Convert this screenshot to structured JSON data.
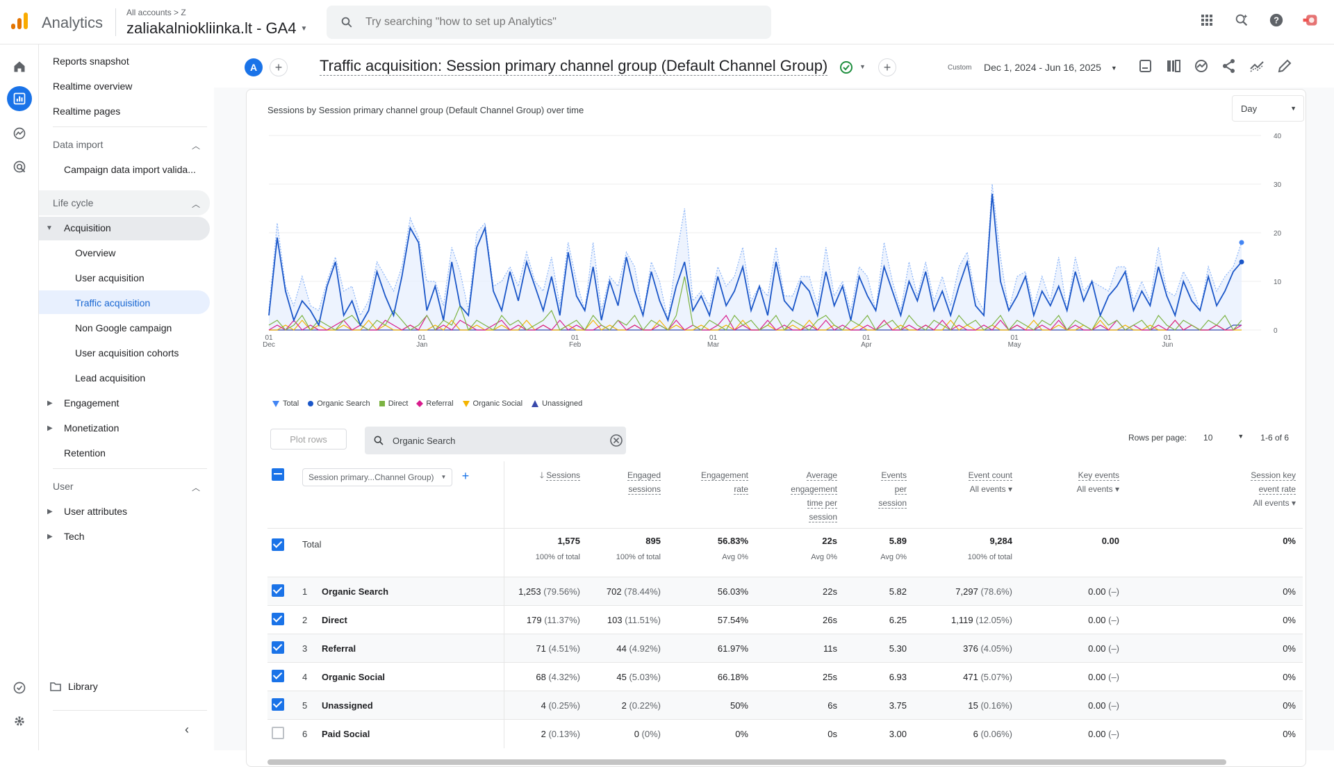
{
  "header": {
    "app_name": "Analytics",
    "breadcrumb": "All accounts > Z",
    "property": "zaliakalniokliinka.lt - GA4",
    "search_placeholder": "Try searching \"how to set up Analytics\""
  },
  "nav": {
    "items": [
      "Reports snapshot",
      "Realtime overview",
      "Realtime pages"
    ],
    "data_import_label": "Data import",
    "data_import_child": "Campaign data import valida...",
    "lifecycle_label": "Life cycle",
    "acquisition_label": "Acquisition",
    "acq_children": [
      "Overview",
      "User acquisition",
      "Traffic acquisition",
      "Non Google campaign",
      "User acquisition cohorts",
      "Lead acquisition"
    ],
    "engagement": "Engagement",
    "monetization": "Monetization",
    "retention": "Retention",
    "user_label": "User",
    "user_attributes": "User attributes",
    "tech": "Tech",
    "library": "Library"
  },
  "toolbar": {
    "avatar": "A",
    "title": "Traffic acquisition: Session primary channel group (Default Channel Group)",
    "custom_label": "Custom",
    "date_range": "Dec 1, 2024 - Jun 16, 2025"
  },
  "chart": {
    "title": "Sessions by Session primary channel group (Default Channel Group) over time",
    "granularity": "Day",
    "y_ticks": [
      "40",
      "30",
      "20",
      "10",
      "0"
    ],
    "x_ticks": [
      {
        "a": "01",
        "b": "Dec"
      },
      {
        "a": "01",
        "b": "Jan"
      },
      {
        "a": "01",
        "b": "Feb"
      },
      {
        "a": "01",
        "b": "Mar"
      },
      {
        "a": "01",
        "b": "Apr"
      },
      {
        "a": "01",
        "b": "May"
      },
      {
        "a": "01",
        "b": "Jun"
      }
    ],
    "legend": [
      "Total",
      "Organic Search",
      "Direct",
      "Referral",
      "Organic Social",
      "Unassigned"
    ],
    "colors": {
      "total": "#4285f4",
      "organic": "#1a56c8",
      "direct": "#7cb342",
      "referral": "#d81b8c",
      "social": "#f4b400",
      "unassigned": "#3949ab"
    }
  },
  "chart_data": {
    "type": "line",
    "x": "daily, Dec 1, 2024 - Jun 16, 2025",
    "ylim": [
      0,
      40
    ],
    "series": [
      {
        "name": "Organic Search",
        "values": [
          3,
          19,
          8,
          2,
          6,
          4,
          1,
          9,
          14,
          3,
          6,
          1,
          4,
          12,
          7,
          3,
          11,
          21,
          18,
          4,
          9,
          2,
          14,
          5,
          3,
          17,
          21,
          8,
          4,
          12,
          6,
          14,
          9,
          4,
          11,
          3,
          16,
          7,
          4,
          13,
          2,
          10,
          5,
          15,
          8,
          3,
          12,
          6,
          2,
          9,
          14,
          4,
          7,
          3,
          11,
          5,
          8,
          13,
          4,
          9,
          3,
          14,
          6,
          4,
          10,
          8,
          3,
          12,
          5,
          9,
          2,
          11,
          7,
          4,
          13,
          8,
          3,
          10,
          6,
          12,
          4,
          8,
          3,
          9,
          14,
          5,
          3,
          28,
          10,
          4,
          7,
          11,
          3,
          8,
          5,
          9,
          4,
          12,
          6,
          10,
          3,
          7,
          9,
          12,
          4,
          8,
          5,
          13,
          7,
          3,
          10,
          6,
          4,
          11,
          5,
          8,
          12,
          14
        ]
      },
      {
        "name": "Direct",
        "values": [
          1,
          2,
          0,
          1,
          3,
          0,
          2,
          1,
          0,
          2,
          3,
          1,
          0,
          2,
          1,
          4,
          2,
          0,
          1,
          3,
          0,
          2,
          1,
          5,
          0,
          2,
          1,
          0,
          3,
          1,
          2,
          0,
          1,
          2,
          4,
          0,
          1,
          2,
          0,
          3,
          1,
          0,
          2,
          1,
          3,
          0,
          2,
          1,
          0,
          3,
          11,
          1,
          0,
          2,
          1,
          0,
          3,
          1,
          2,
          0,
          1,
          3,
          0,
          2,
          1,
          0,
          2,
          3,
          1,
          0,
          2,
          1,
          3,
          0,
          1,
          2,
          0,
          3,
          1,
          0,
          2,
          1,
          0,
          3,
          1,
          2,
          0,
          1,
          3,
          0,
          2,
          1,
          0,
          2,
          1,
          3,
          0,
          2,
          1,
          0,
          3,
          1,
          2,
          0,
          1,
          2,
          0,
          3,
          1,
          0,
          2,
          1,
          0,
          2,
          1,
          3,
          0,
          2
        ]
      },
      {
        "name": "Referral",
        "values": [
          0,
          1,
          0,
          2,
          0,
          1,
          0,
          0,
          1,
          2,
          0,
          1,
          0,
          0,
          2,
          1,
          0,
          1,
          0,
          3,
          0,
          1,
          0,
          2,
          1,
          0,
          0,
          1,
          2,
          0,
          1,
          0,
          0,
          1,
          0,
          2,
          0,
          1,
          0,
          0,
          1,
          0,
          2,
          0,
          1,
          0,
          0,
          1,
          0,
          2,
          0,
          1,
          0,
          0,
          1,
          3,
          0,
          1,
          0,
          0,
          2,
          0,
          1,
          0,
          0,
          1,
          0,
          2,
          0,
          1,
          0,
          0,
          1,
          0,
          2,
          0,
          0,
          1,
          0,
          1,
          0,
          2,
          0,
          1,
          0,
          0,
          1,
          0,
          2,
          0,
          1,
          0,
          0,
          1,
          0,
          2,
          0,
          1,
          0,
          0,
          1,
          0,
          2,
          0,
          1,
          0,
          0,
          1,
          0,
          2,
          0,
          1,
          0,
          0,
          1,
          0,
          0,
          1
        ]
      },
      {
        "name": "Organic Social",
        "values": [
          0,
          0,
          1,
          0,
          2,
          0,
          1,
          0,
          0,
          1,
          0,
          0,
          2,
          0,
          1,
          0,
          0,
          1,
          0,
          0,
          1,
          0,
          2,
          0,
          0,
          1,
          0,
          0,
          1,
          0,
          0,
          2,
          0,
          1,
          0,
          0,
          1,
          0,
          0,
          2,
          0,
          1,
          0,
          0,
          1,
          0,
          0,
          2,
          0,
          1,
          0,
          0,
          1,
          0,
          0,
          1,
          0,
          2,
          0,
          0,
          1,
          0,
          0,
          1,
          0,
          2,
          0,
          0,
          1,
          0,
          0,
          1,
          0,
          0,
          2,
          0,
          1,
          0,
          0,
          1,
          0,
          0,
          2,
          0,
          1,
          0,
          0,
          1,
          0,
          0,
          1,
          0,
          2,
          0,
          0,
          1,
          0,
          0,
          1,
          0,
          2,
          0,
          0,
          1,
          0,
          0,
          1,
          0,
          0,
          2,
          0,
          1,
          0,
          0,
          1,
          0,
          0,
          0
        ]
      },
      {
        "name": "Unassigned",
        "values": [
          0,
          0,
          0,
          0,
          0,
          0,
          0,
          0,
          0,
          0,
          0,
          0,
          0,
          0,
          0,
          0,
          0,
          0,
          0,
          0,
          0,
          0,
          0,
          0,
          0,
          0,
          0,
          0,
          0,
          0,
          0,
          0,
          0,
          0,
          0,
          0,
          0,
          0,
          0,
          0,
          0,
          0,
          0,
          0,
          0,
          0,
          0,
          0,
          0,
          0,
          0,
          0,
          0,
          0,
          0,
          0,
          0,
          0,
          0,
          0,
          0,
          0,
          0,
          0,
          0,
          0,
          0,
          0,
          0,
          0,
          0,
          0,
          0,
          0,
          0,
          0,
          0,
          0,
          0,
          0,
          0,
          0,
          0,
          0,
          0,
          0,
          0,
          0,
          0,
          0,
          0,
          0,
          0,
          0,
          0,
          0,
          0,
          0,
          0,
          0,
          0,
          0,
          0,
          0,
          0,
          0,
          0,
          0,
          0,
          0,
          0,
          0,
          0,
          0,
          0,
          0,
          1,
          1
        ]
      }
    ]
  },
  "table": {
    "plot_rows": "Plot rows",
    "filter_value": "Organic Search",
    "rows_per_page_label": "Rows per page:",
    "rows_per_page": "10",
    "range": "1-6 of 6",
    "dim_select": "Session primary...Channel Group)",
    "headers": {
      "sessions": "Sessions",
      "engaged": [
        "Engaged",
        "sessions"
      ],
      "engagement_rate": [
        "Engagement",
        "rate"
      ],
      "avg_time": [
        "Average",
        "engagement",
        "time per",
        "session"
      ],
      "events_per": [
        "Events",
        "per",
        "session"
      ],
      "event_count": "Event count",
      "key_events": "Key events",
      "session_key_rate": [
        "Session key",
        "event rate"
      ],
      "all_events": "All events"
    },
    "total": {
      "label": "Total",
      "sessions": "1,575",
      "sessions_sub": "100% of total",
      "engaged": "895",
      "engaged_sub": "100% of total",
      "rate": "56.83%",
      "rate_sub": "Avg 0%",
      "time": "22s",
      "time_sub": "Avg 0%",
      "eps": "5.89",
      "eps_sub": "Avg 0%",
      "events": "9,284",
      "events_sub": "100% of total",
      "key": "0.00",
      "skr": "0%"
    },
    "rows": [
      {
        "n": "1",
        "name": "Organic Search",
        "sessions": "1,253",
        "sp": "(79.56%)",
        "engaged": "702",
        "ep": "(78.44%)",
        "rate": "56.03%",
        "time": "22s",
        "eps": "5.82",
        "events": "7,297",
        "evp": "(78.6%)",
        "key": "0.00",
        "kp": "(–)",
        "skr": "0%",
        "checked": true
      },
      {
        "n": "2",
        "name": "Direct",
        "sessions": "179",
        "sp": "(11.37%)",
        "engaged": "103",
        "ep": "(11.51%)",
        "rate": "57.54%",
        "time": "26s",
        "eps": "6.25",
        "events": "1,119",
        "evp": "(12.05%)",
        "key": "0.00",
        "kp": "(–)",
        "skr": "0%",
        "checked": true
      },
      {
        "n": "3",
        "name": "Referral",
        "sessions": "71",
        "sp": "(4.51%)",
        "engaged": "44",
        "ep": "(4.92%)",
        "rate": "61.97%",
        "time": "11s",
        "eps": "5.30",
        "events": "376",
        "evp": "(4.05%)",
        "key": "0.00",
        "kp": "(–)",
        "skr": "0%",
        "checked": true
      },
      {
        "n": "4",
        "name": "Organic Social",
        "sessions": "68",
        "sp": "(4.32%)",
        "engaged": "45",
        "ep": "(5.03%)",
        "rate": "66.18%",
        "time": "25s",
        "eps": "6.93",
        "events": "471",
        "evp": "(5.07%)",
        "key": "0.00",
        "kp": "(–)",
        "skr": "0%",
        "checked": true
      },
      {
        "n": "5",
        "name": "Unassigned",
        "sessions": "4",
        "sp": "(0.25%)",
        "engaged": "2",
        "ep": "(0.22%)",
        "rate": "50%",
        "time": "6s",
        "eps": "3.75",
        "events": "15",
        "evp": "(0.16%)",
        "key": "0.00",
        "kp": "(–)",
        "skr": "0%",
        "checked": true
      },
      {
        "n": "6",
        "name": "Paid Social",
        "sessions": "2",
        "sp": "(0.13%)",
        "engaged": "0",
        "ep": "(0%)",
        "rate": "0%",
        "time": "0s",
        "eps": "3.00",
        "events": "6",
        "evp": "(0.06%)",
        "key": "0.00",
        "kp": "(–)",
        "skr": "0%",
        "checked": false
      }
    ]
  }
}
